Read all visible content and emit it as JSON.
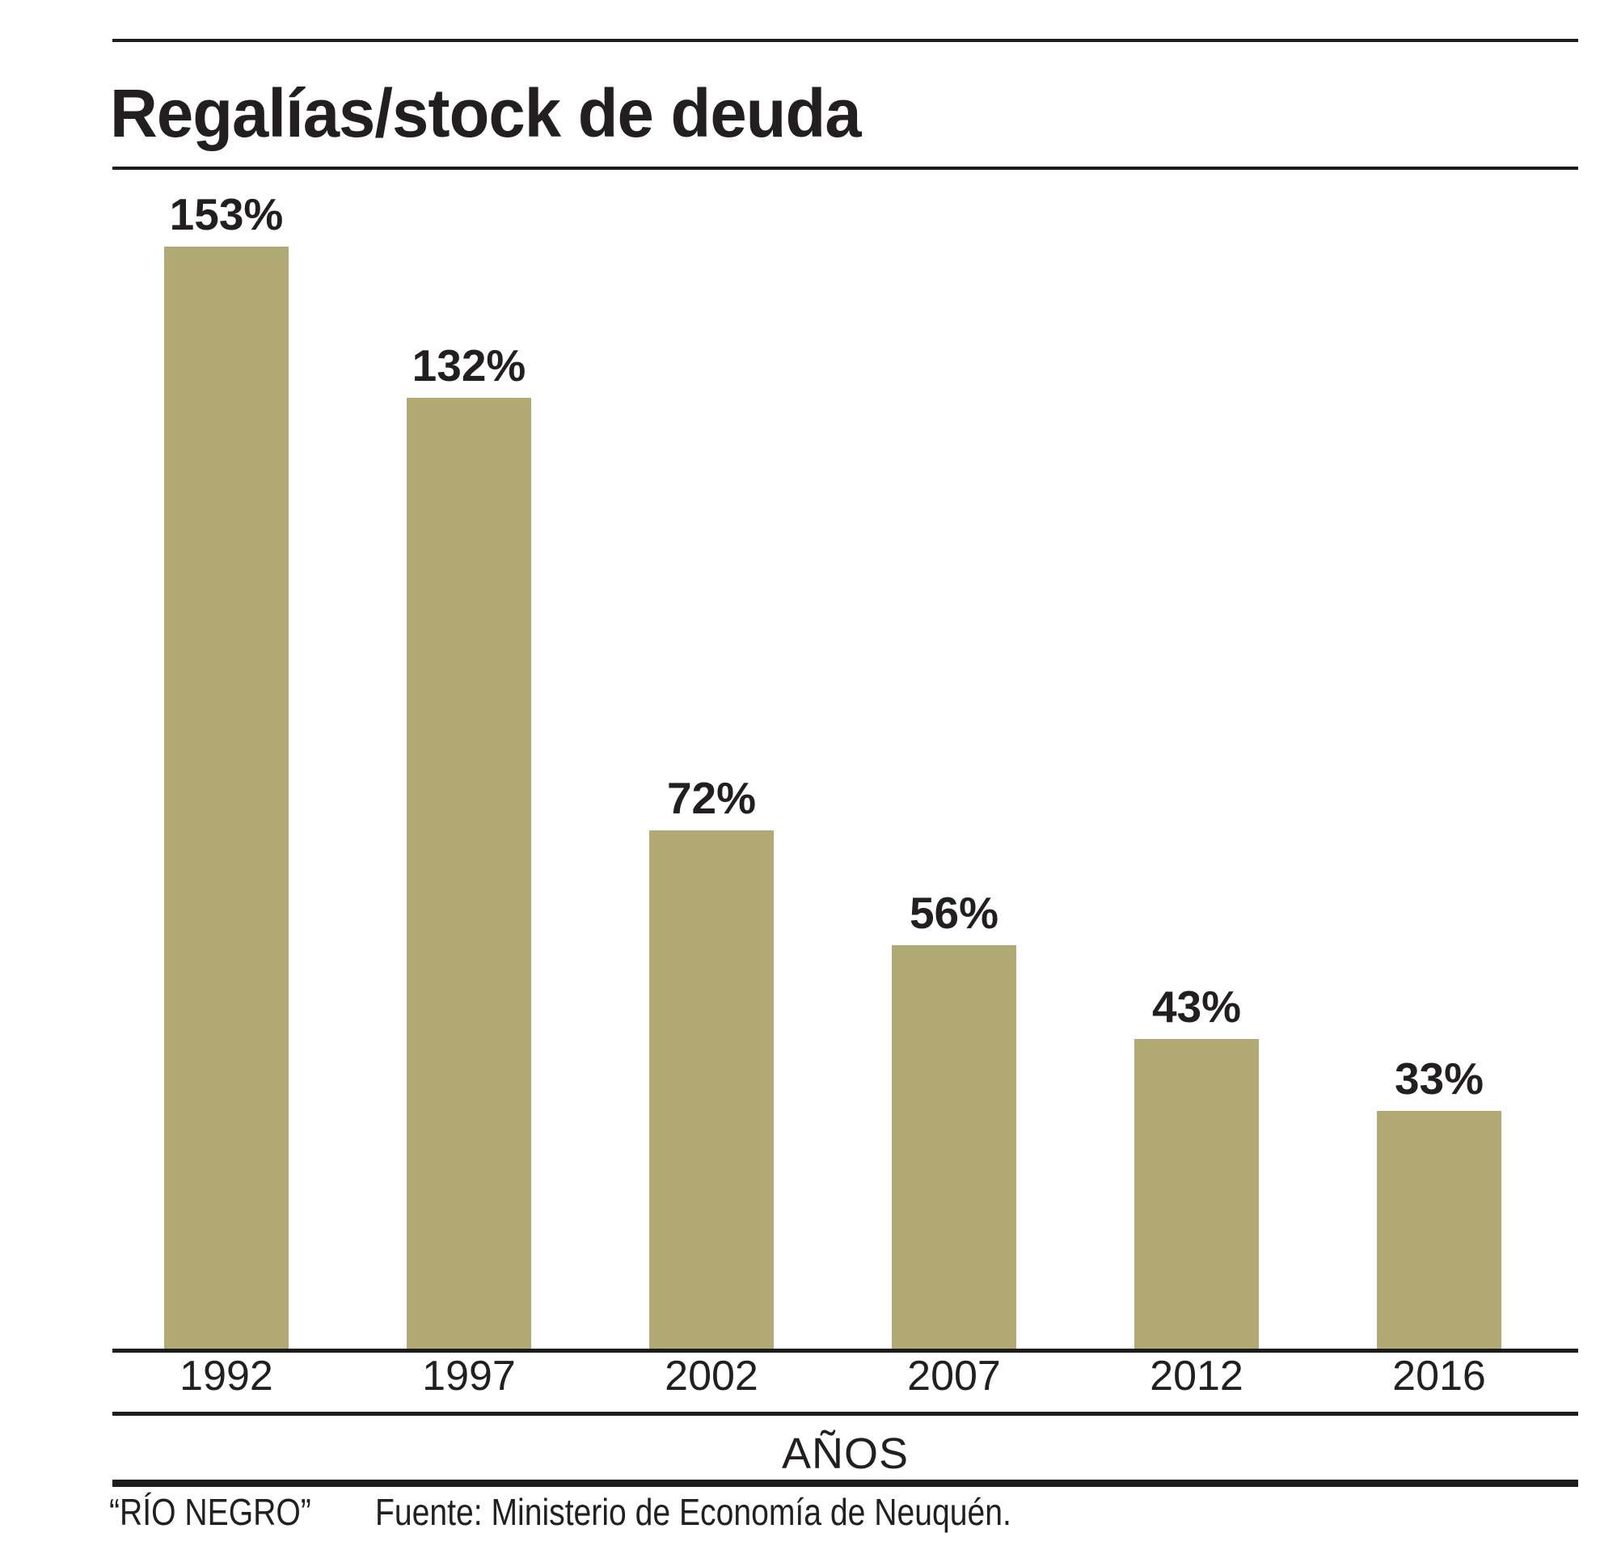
{
  "chart_data": {
    "type": "bar",
    "title": "Regalías/stock de deuda",
    "categories": [
      "1992",
      "1997",
      "2002",
      "2007",
      "2012",
      "2016"
    ],
    "values": [
      153,
      132,
      72,
      56,
      43,
      33
    ],
    "value_labels": [
      "153%",
      "132%",
      "72%",
      "56%",
      "43%",
      "33%"
    ],
    "xlabel": "AÑOS",
    "ylabel": "",
    "ylim": [
      0,
      160
    ],
    "grid": false,
    "legend": false,
    "bar_color": "#b1aa74"
  },
  "footer": {
    "credit": "“RÍO NEGRO”",
    "source": "Fuente: Ministerio de Economía de Neuquén."
  },
  "colors": {
    "bar": "#b1aa74",
    "text": "#231f20",
    "rule": "#1f1d1b",
    "background": "#ffffff"
  }
}
